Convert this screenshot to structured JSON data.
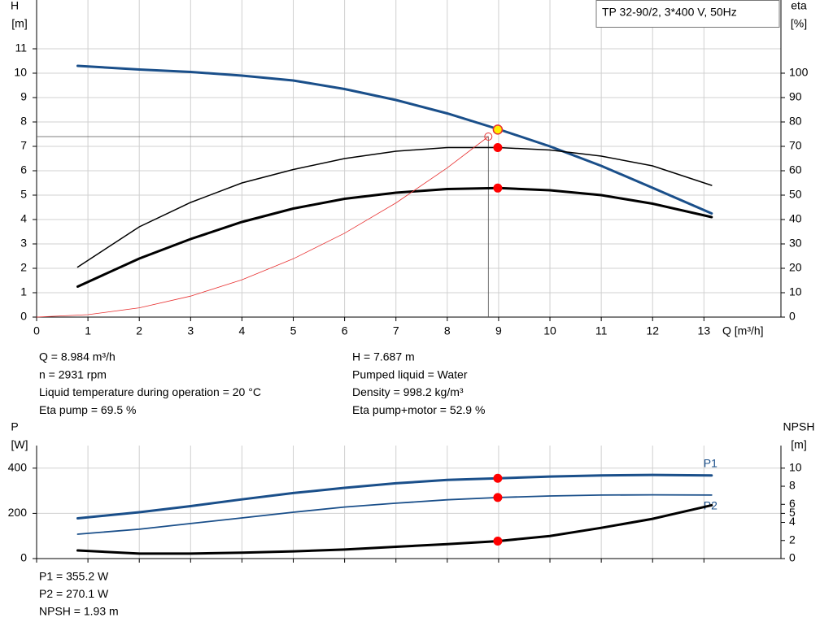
{
  "chart_data": [
    {
      "type": "line",
      "title": "TP 32-90/2, 3*400 V, 50Hz",
      "ylabel": "H",
      "yunit": "[m]",
      "y2label": "eta",
      "y2unit": "[%]",
      "xlabel": "Q [m³/h]",
      "xlim": [
        0,
        14.5
      ],
      "xticks": [
        0,
        1,
        2,
        3,
        4,
        5,
        6,
        7,
        8,
        9,
        10,
        11,
        12,
        13
      ],
      "xtick_labels": true,
      "ylim": [
        0,
        13
      ],
      "yticks": [
        0,
        1,
        2,
        3,
        4,
        5,
        6,
        7,
        8,
        9,
        10,
        11
      ],
      "y2lim": [
        0,
        130
      ],
      "y2ticks": [
        0,
        10,
        20,
        30,
        40,
        50,
        60,
        70,
        80,
        90,
        100
      ],
      "grid": true,
      "series": [
        {
          "color": "#1a4f8a",
          "width": 3,
          "x": [
            0.8,
            2,
            3,
            4,
            5,
            6,
            7,
            8,
            9,
            10,
            11,
            12,
            13.15
          ],
          "values": [
            10.3,
            10.15,
            10.05,
            9.9,
            9.7,
            9.35,
            8.9,
            8.35,
            7.7,
            7.0,
            6.2,
            5.3,
            4.25
          ]
        },
        {
          "color": "#000000",
          "width": 1.5,
          "axis": "y2",
          "x": [
            0.8,
            2,
            3,
            4,
            5,
            6,
            7,
            8,
            9,
            10,
            11,
            12,
            13.15
          ],
          "values": [
            20.5,
            37,
            47,
            55,
            60.5,
            65,
            68,
            69.5,
            69.5,
            68.5,
            66,
            62,
            54
          ]
        },
        {
          "color": "#000000",
          "width": 3,
          "axis": "y2",
          "x": [
            0.8,
            2,
            3,
            4,
            5,
            6,
            7,
            8,
            9,
            10,
            11,
            12,
            13.15
          ],
          "values": [
            12.5,
            24,
            32,
            39,
            44.5,
            48.5,
            51,
            52.5,
            52.9,
            52,
            50,
            46.5,
            41
          ]
        },
        {
          "color": "#e83030",
          "width": 0.8,
          "x": [
            0,
            1,
            2,
            3,
            4,
            5,
            6,
            7,
            8,
            8.8
          ],
          "values": [
            0,
            0.1,
            0.38,
            0.86,
            1.53,
            2.39,
            3.44,
            4.68,
            6.12,
            7.4
          ]
        }
      ],
      "guide": {
        "x": 8.8,
        "y": 7.4
      },
      "points": [
        {
          "x": 8.984,
          "y": 7.687,
          "color": "#ffee00"
        },
        {
          "x": 8.984,
          "y": 69.5,
          "axis": "y2",
          "color": "#ff0000"
        },
        {
          "x": 8.984,
          "y": 52.9,
          "axis": "y2",
          "color": "#ff0000"
        }
      ]
    },
    {
      "type": "line",
      "ylabel": "P",
      "yunit": "[W]",
      "y2label": "NPSH",
      "y2unit": "[m]",
      "xlim": [
        0,
        14.5
      ],
      "xticks": [
        0,
        1,
        2,
        3,
        4,
        5,
        6,
        7,
        8,
        9,
        10,
        11,
        12,
        13
      ],
      "xtick_labels": false,
      "ylim": [
        0,
        500
      ],
      "yticks": [
        0,
        200,
        400
      ],
      "y2lim": [
        0,
        12.5
      ],
      "y2ticks": [
        0,
        2,
        4,
        5,
        6,
        8,
        10
      ],
      "grid": true,
      "series": [
        {
          "name": "P1",
          "color": "#1a4f8a",
          "width": 3,
          "x": [
            0.8,
            2,
            3,
            4,
            5,
            6,
            7,
            8,
            9,
            10,
            11,
            12,
            13.15
          ],
          "values": [
            178,
            205,
            232,
            262,
            290,
            313,
            333,
            348,
            355.2,
            363,
            368,
            370,
            368
          ]
        },
        {
          "name": "P2",
          "color": "#1a4f8a",
          "width": 1.8,
          "x": [
            0.8,
            2,
            3,
            4,
            5,
            6,
            7,
            8,
            9,
            10,
            11,
            12,
            13.15
          ],
          "values": [
            108,
            130,
            155,
            180,
            205,
            228,
            245,
            260,
            270.1,
            277,
            281,
            282,
            281
          ]
        },
        {
          "color": "#000000",
          "width": 3,
          "axis": "y2",
          "x": [
            0.8,
            2,
            3,
            4,
            5,
            6,
            7,
            8,
            9,
            10,
            11,
            12,
            13.15
          ],
          "values": [
            0.9,
            0.55,
            0.55,
            0.65,
            0.8,
            1.0,
            1.3,
            1.6,
            1.93,
            2.5,
            3.4,
            4.4,
            5.9
          ]
        }
      ],
      "points": [
        {
          "x": 8.984,
          "y": 355.2,
          "color": "#ff0000"
        },
        {
          "x": 8.984,
          "y": 270.1,
          "color": "#ff0000"
        },
        {
          "x": 8.984,
          "y": 1.93,
          "axis": "y2",
          "color": "#ff0000"
        }
      ]
    }
  ],
  "info_top": {
    "left": [
      "Q = 8.984 m³/h",
      "n = 2931 rpm",
      "Liquid temperature during operation = 20 °C",
      "Eta pump = 69.5 %"
    ],
    "right": [
      "H = 7.687 m",
      "Pumped liquid = Water",
      "Density = 998.2 kg/m³",
      "Eta pump+motor = 52.9 %"
    ]
  },
  "info_bottom": [
    "P1 = 355.2 W",
    "P2 = 270.1 W",
    "NPSH = 1.93 m"
  ]
}
